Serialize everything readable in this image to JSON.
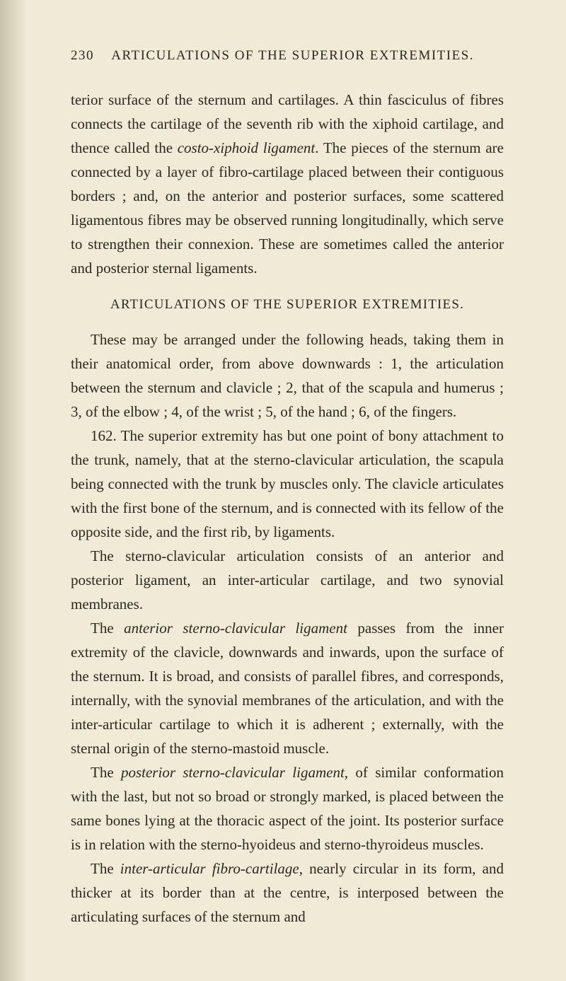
{
  "page": {
    "number": "230",
    "header": "ARTICULATIONS OF THE SUPERIOR EXTREMITIES.",
    "para1_a": "terior surface of the sternum and cartilages. A thin fasciculus of fibres connects the cartilage of the seventh rib with the xiphoid cartilage, and thence called the ",
    "para1_i1": "costo-xiphoid ligament",
    "para1_b": ". The pieces of the sternum are connected by a layer of fibro-cartilage placed between their contiguous borders ; and, on the anterior and posterior surfaces, some scattered ligamentous fibres may be observed running longitudinally, which serve to strengthen their connexion. These are sometimes called the anterior and posterior sternal ligaments.",
    "section_heading": "ARTICULATIONS OF THE SUPERIOR EXTREMITIES.",
    "para2": "These may be arranged under the following heads, taking them in their anatomical order, from above downwards : 1, the articulation between the sternum and clavicle ; 2, that of the scapula and humerus ; 3, of the elbow ; 4, of the wrist ; 5, of the hand ; 6, of the fingers.",
    "para3": "162. The superior extremity has but one point of bony attachment to the trunk, namely, that at the sterno-clavicular articulation, the scapula being connected with the trunk by muscles only. The clavicle articulates with the first bone of the sternum, and is connected with its fellow of the opposite side, and the first rib, by ligaments.",
    "para4": "The sterno-clavicular articulation consists of an anterior and posterior ligament, an inter-articular cartilage, and two synovial membranes.",
    "para5_a": "The ",
    "para5_i1": "anterior sterno-clavicular ligament",
    "para5_b": " passes from the inner extremity of the clavicle, downwards and inwards, upon the surface of the sternum. It is broad, and consists of parallel fibres, and corresponds, internally, with the synovial membranes of the articulation, and with the inter-articular cartilage to which it is adherent ; externally, with the sternal origin of the sterno-mastoid muscle.",
    "para6_a": "The ",
    "para6_i1": "posterior sterno-clavicular ligament",
    "para6_b": ", of similar conformation with the last, but not so broad or strongly marked, is placed between the same bones lying at the thoracic aspect of the joint. Its posterior surface is in relation with the sterno-hyoideus and sterno-thyroideus muscles.",
    "para7_a": "The ",
    "para7_i1": "inter-articular fibro-cartilage",
    "para7_b": ", nearly circular in its form, and thicker at its border than at the centre, is interposed between the articulating surfaces of the sternum and"
  },
  "colors": {
    "background": "#f0ead6",
    "text": "#2a2820"
  }
}
